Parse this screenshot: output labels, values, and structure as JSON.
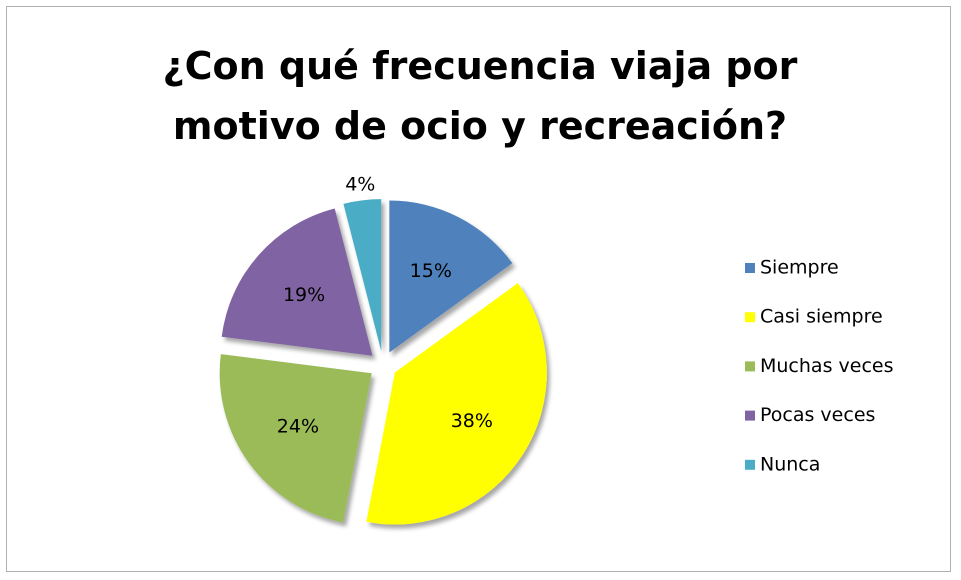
{
  "chart_data": {
    "type": "pie",
    "title": "¿Con qué frecuencia viaja por motivo de ocio y recreación?",
    "categories": [
      "Siempre",
      "Casi siempre",
      "Muchas veces",
      "Pocas veces",
      "Nunca"
    ],
    "values": [
      15,
      38,
      24,
      19,
      4
    ],
    "value_labels": [
      "15%",
      "38%",
      "24%",
      "19%",
      "4%"
    ],
    "colors": [
      "#4f81bd",
      "#ffff00",
      "#9bbb59",
      "#8064a2",
      "#4bacc6"
    ],
    "legend": "right"
  }
}
